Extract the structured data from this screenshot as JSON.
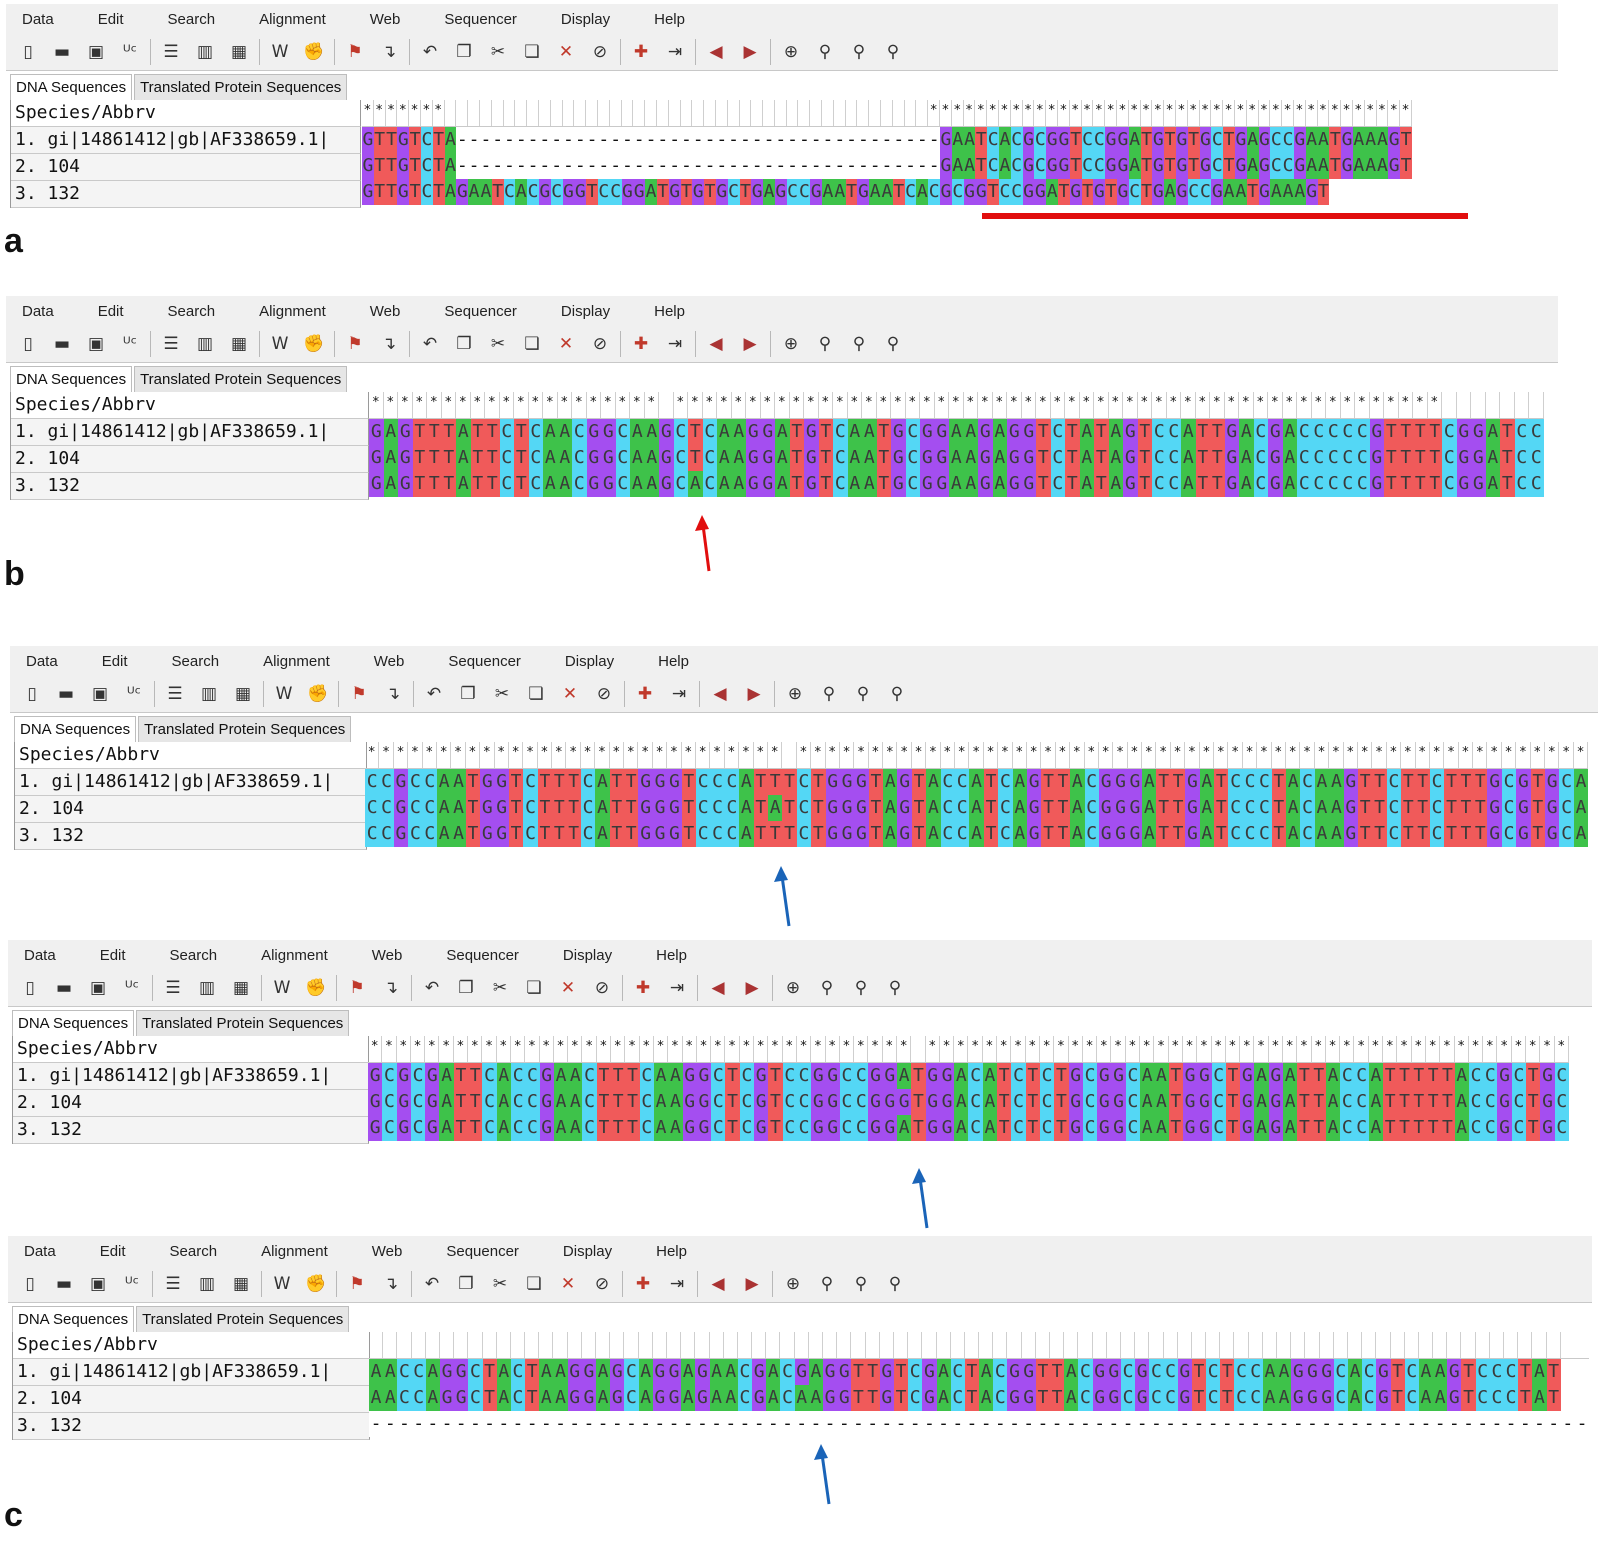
{
  "menu": [
    "Data",
    "Edit",
    "Search",
    "Alignment",
    "Web",
    "Sequencer",
    "Display",
    "Help"
  ],
  "tabs": [
    "DNA Sequences",
    "Translated Protein Sequences"
  ],
  "colors": {
    "A": "#3ec24a",
    "C": "#54d7f5",
    "G": "#a44ef0",
    "T": "#f05a5a",
    "red_mark": "#e10e0e",
    "blue_mark": "#1a64b8"
  },
  "toolbar_icons": [
    "new-file-icon",
    "open-folder-icon",
    "save-icon",
    "uppercase-icon",
    "sep",
    "document-icon",
    "columns-icon",
    "atcg-icon",
    "sep",
    "italic-w-icon",
    "muscle-icon",
    "sep",
    "flag-icon",
    "cursor-icon",
    "sep",
    "undo-icon",
    "copy-icon",
    "cut-icon",
    "paste-icon",
    "delete-icon",
    "find-icon",
    "sep",
    "add-icon",
    "import-icon",
    "sep",
    "prev-icon",
    "next-icon",
    "sep",
    "zoom-icon",
    "search-prev-icon",
    "search-next-icon",
    "search-clear-icon"
  ],
  "panels": [
    {
      "label": "a",
      "header": "Species/Abbrv",
      "names": [
        "1. gi|14861412|gb|AF338659.1|",
        "2. 104",
        "3. 132"
      ],
      "stars": "*******                                         ***************************************************",
      "seqs": [
        "GTTGTCTA-----------------------------------------GAATCACGCGGTCCGGATGTGTGCTGAGCCGAATGAAAGT",
        "GTTGTCTA-----------------------------------------GAATCACGCGGTCCGGATGTGTGCTGAGCCGAATGAAAGT",
        "GTTGTCTAGAATCACGCGGTCCGGATGTGTGCTGAGCCGAATGAATCACGCGGTCCGGATGTGTGCTGAGCCGAATGAAAGT"
      ]
    },
    {
      "label": "b",
      "header": "Species/Abbrv",
      "names": [
        "1. gi|14861412|gb|AF338659.1|",
        "2. 104",
        "3. 132"
      ],
      "stars": "******************** *****************************************************",
      "seqs": [
        "GAGTTTATTCTCAACGGCAAGCTCAAGGATGTCAATGCGGAAGAGGTCTATAGTCCATTGACGACCCCCGTTTTCGGATCC",
        "GAGTTTATTCTCAACGGCAAGCTCAAGGATGTCAATGCGGAAGAGGTCTATAGTCCATTGACGACCCCCGTTTTCGGATCC",
        "GAGTTTATTCTCAACGGCAAGCACAAGGATGTCAATGCGGAAGAGGTCTATAGTCCATTGACGACCCCCGTTTTCGGATCC"
      ]
    },
    {
      "label": "",
      "header": "Species/Abbrv",
      "names": [
        "1. gi|14861412|gb|AF338659.1|",
        "2. 104",
        "3. 132"
      ],
      "stars": "***************************** ***********************************************************",
      "seqs": [
        "CCGCCAATGGTCTTTCATTGGGTCCCATTTCTGGGTAGTACCATCAGTTACGGGATTGATCCCTACAAGTTCTTCTTTGCGTGCAG",
        "CCGCCAATGGTCTTTCATTGGGTCCCATATCTGGGTAGTACCATCAGTTACGGGATTGATCCCTACAAGTTCTTCTTTGCGTGCAG",
        "CCGCCAATGGTCTTTCATTGGGTCCCATTTCTGGGTAGTACCATCAGTTACGGGATTGATCCCTACAAGTTCTTCTTTGCGTGCAG"
      ]
    },
    {
      "label": "",
      "header": "Species/Abbrv",
      "names": [
        "1. gi|14861412|gb|AF338659.1|",
        "2. 104",
        "3. 132"
      ],
      "stars": "************************************** ***************************************************",
      "seqs": [
        "GCGCGATTCACCGAACTTTCAAGGCTCGTCCGGCCGGATGGACATCTCTGCGGCAATGGCTGAGATTACCATTTTTACCGCTGC",
        "GCGCGATTCACCGAACTTTCAAGGCTCGTCCGGCCGGGTGGACATCTCTGCGGCAATGGCTGAGATTACCATTTTTACCGCTGC",
        "GCGCGATTCACCGAACTTTCAAGGCTCGTCCGGCCGGATGGACATCTCTGCGGCAATGGCTGAGATTACCATTTTTACCGCTGC"
      ]
    },
    {
      "label": "c",
      "header": "Species/Abbrv",
      "names": [
        "1. gi|14861412|gb|AF338659.1|",
        "2. 104",
        "3. 132"
      ],
      "stars": "",
      "seqs": [
        "AACCAGGCTACTAAGGAGCAGGAGAACGACGAGGTTGTCGACTACGGTTACGGCGCCGTCTCCAAGGGCACGTCAAGTCCCTAT",
        "AACCAGGCTACTAAGGAGCAGGAGAACGACAAGGTTGTCGACTACGGTTACGGCGCCGTCTCCAAGGGCACGTCAAGTCCCTAT",
        "------------------------------------------------------------------------------------------"
      ]
    }
  ]
}
